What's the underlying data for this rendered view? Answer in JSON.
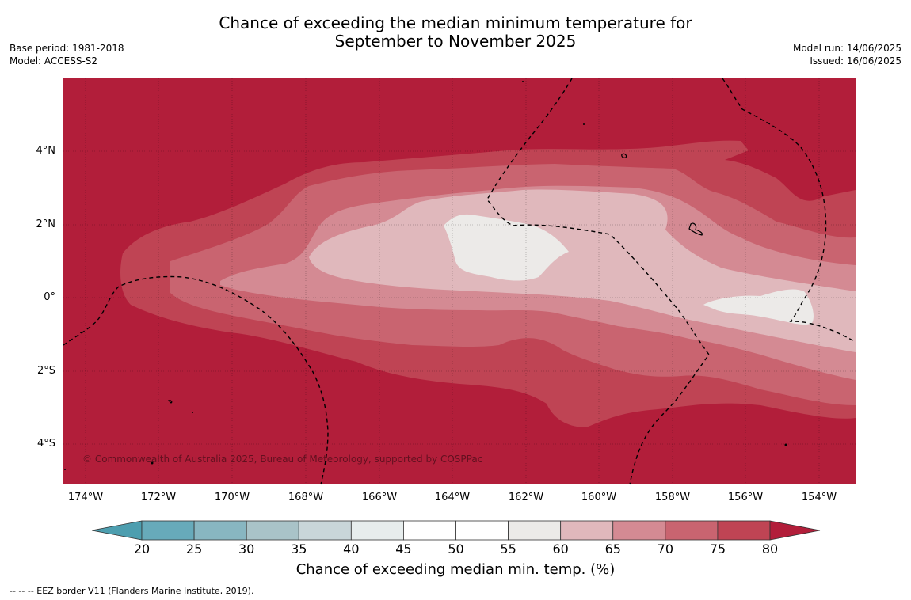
{
  "title": {
    "line1": "Chance of exceeding the median minimum temperature for",
    "line2": "September to November 2025"
  },
  "meta": {
    "base_period": "Base period: 1981-2018",
    "model": "Model: ACCESS-S2",
    "model_run": "Model run: 14/06/2025",
    "issued": "Issued: 16/06/2025"
  },
  "map": {
    "lat_ticks": [
      "4°N",
      "2°N",
      "0°",
      "2°S",
      "4°S"
    ],
    "lon_ticks": [
      "174°W",
      "172°W",
      "170°W",
      "168°W",
      "166°W",
      "164°W",
      "162°W",
      "160°W",
      "158°W",
      "156°W",
      "154°W"
    ],
    "copyright": "© Commonwealth of Australia 2025, Bureau of Meteorology, supported by COSPPac",
    "levels": [
      {
        "range": "60-65",
        "color": "#e0b8bc"
      },
      {
        "range": "65-70",
        "color": "#d48a93"
      },
      {
        "range": "70-75",
        "color": "#c96470"
      },
      {
        "range": "75-80",
        "color": "#bf4454"
      },
      {
        "range": ">80",
        "color": "#b21e3a"
      },
      {
        "range": "55-60",
        "color": "#eceae8"
      }
    ]
  },
  "colorbar": {
    "ticks": [
      "20",
      "25",
      "30",
      "35",
      "40",
      "45",
      "50",
      "55",
      "60",
      "65",
      "70",
      "75",
      "80"
    ],
    "colors": {
      "below": "#4d9eaf",
      "segments": [
        "#67aaba",
        "#88b6c1",
        "#a9c3c8",
        "#c9d6d9",
        "#e7eded",
        "#ffffff",
        "#ffffff",
        "#eceae8",
        "#e0b8bc",
        "#d48a93",
        "#c96470",
        "#bf4454"
      ],
      "above": "#b21e3a"
    },
    "label": "Chance of exceeding median min. temp. (%)"
  },
  "footnote": "--  --  -- EEZ border V11 (Flanders Marine Institute, 2019)."
}
